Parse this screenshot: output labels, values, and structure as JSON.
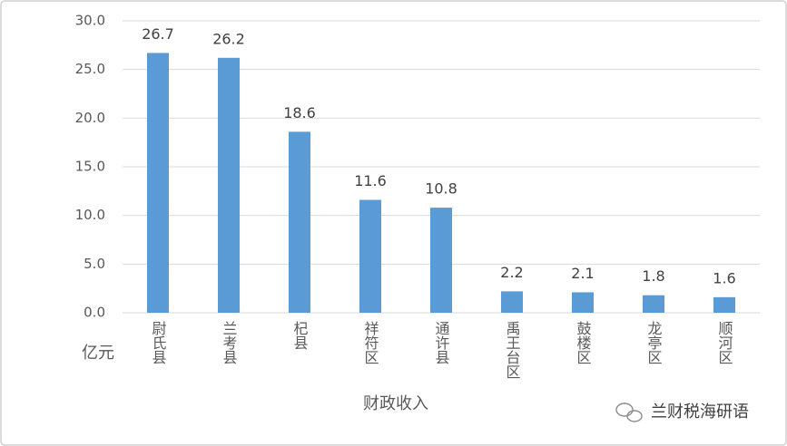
{
  "chart_data": {
    "type": "bar",
    "categories": [
      "尉氏县",
      "兰考县",
      "杞县",
      "祥符区",
      "通许县",
      "禹王台区",
      "鼓楼区",
      "龙亭区",
      "顺河区"
    ],
    "values": [
      26.7,
      26.2,
      18.6,
      11.6,
      10.8,
      2.2,
      2.1,
      1.8,
      1.6
    ],
    "color": "#5b9bd5",
    "ylim": [
      0,
      30
    ],
    "yticks": [
      {
        "value": 0,
        "label": "0.0"
      },
      {
        "value": 5,
        "label": "5.0"
      },
      {
        "value": 10,
        "label": "10.0"
      },
      {
        "value": 15,
        "label": "15.0"
      },
      {
        "value": 20,
        "label": "20.0"
      },
      {
        "value": 25,
        "label": "25.0"
      },
      {
        "value": 30,
        "label": "30.0"
      }
    ],
    "grid": true,
    "y_label": "亿元",
    "x_label": "财政收入",
    "watermark": "兰财税海研语"
  }
}
